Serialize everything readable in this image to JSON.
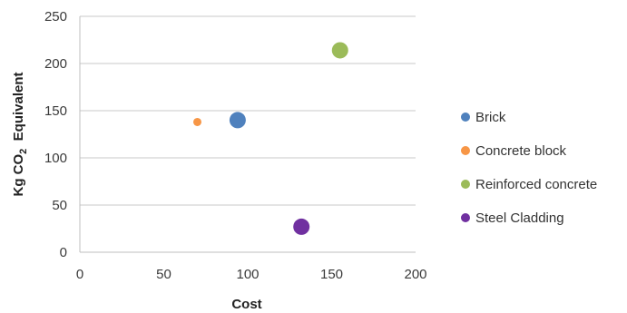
{
  "chart_data": {
    "type": "scatter",
    "xlabel": "Cost",
    "ylabel": "Kg CO",
    "ylabel_sub": "2",
    "ylabel_suffix": "  Equivalent",
    "xlim": [
      0,
      200
    ],
    "ylim": [
      0,
      250
    ],
    "xticks": [
      0,
      50,
      100,
      150,
      200
    ],
    "yticks": [
      0,
      50,
      100,
      150,
      200,
      250
    ],
    "grid": "horizontal",
    "legend_position": "right",
    "series": [
      {
        "name": "Brick",
        "x": 94,
        "y": 140,
        "size": "large",
        "color": "#4f81bd"
      },
      {
        "name": "Concrete block",
        "x": 70,
        "y": 138,
        "size": "small",
        "color": "#f79646"
      },
      {
        "name": "Reinforced concrete",
        "x": 155,
        "y": 214,
        "size": "large",
        "color": "#9bbb59"
      },
      {
        "name": "Steel Cladding",
        "x": 132,
        "y": 27,
        "size": "large",
        "color": "#7030a0"
      }
    ]
  }
}
